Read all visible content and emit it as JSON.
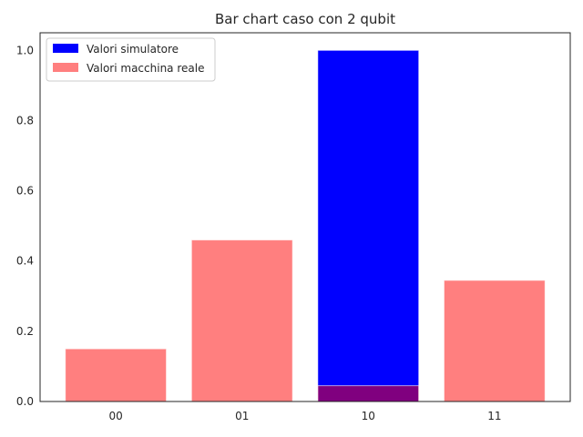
{
  "chart_data": {
    "type": "bar",
    "title": "Bar chart caso con 2 qubit",
    "xlabel": "",
    "ylabel": "",
    "categories": [
      "00",
      "01",
      "10",
      "11"
    ],
    "ylim": [
      0,
      1.05
    ],
    "yticks": [
      "0.0",
      "0.2",
      "0.4",
      "0.6",
      "0.8",
      "1.0"
    ],
    "grid": false,
    "legend_position": "top-left",
    "series": [
      {
        "name": "Valori simulatore",
        "values": [
          0,
          0,
          1.0,
          0
        ],
        "color": "#0000ff",
        "opacity": 1.0
      },
      {
        "name": "Valori macchina reale",
        "values": [
          0.15,
          0.46,
          0.045,
          0.345
        ],
        "color": "#ff0000",
        "opacity": 0.5
      }
    ]
  }
}
